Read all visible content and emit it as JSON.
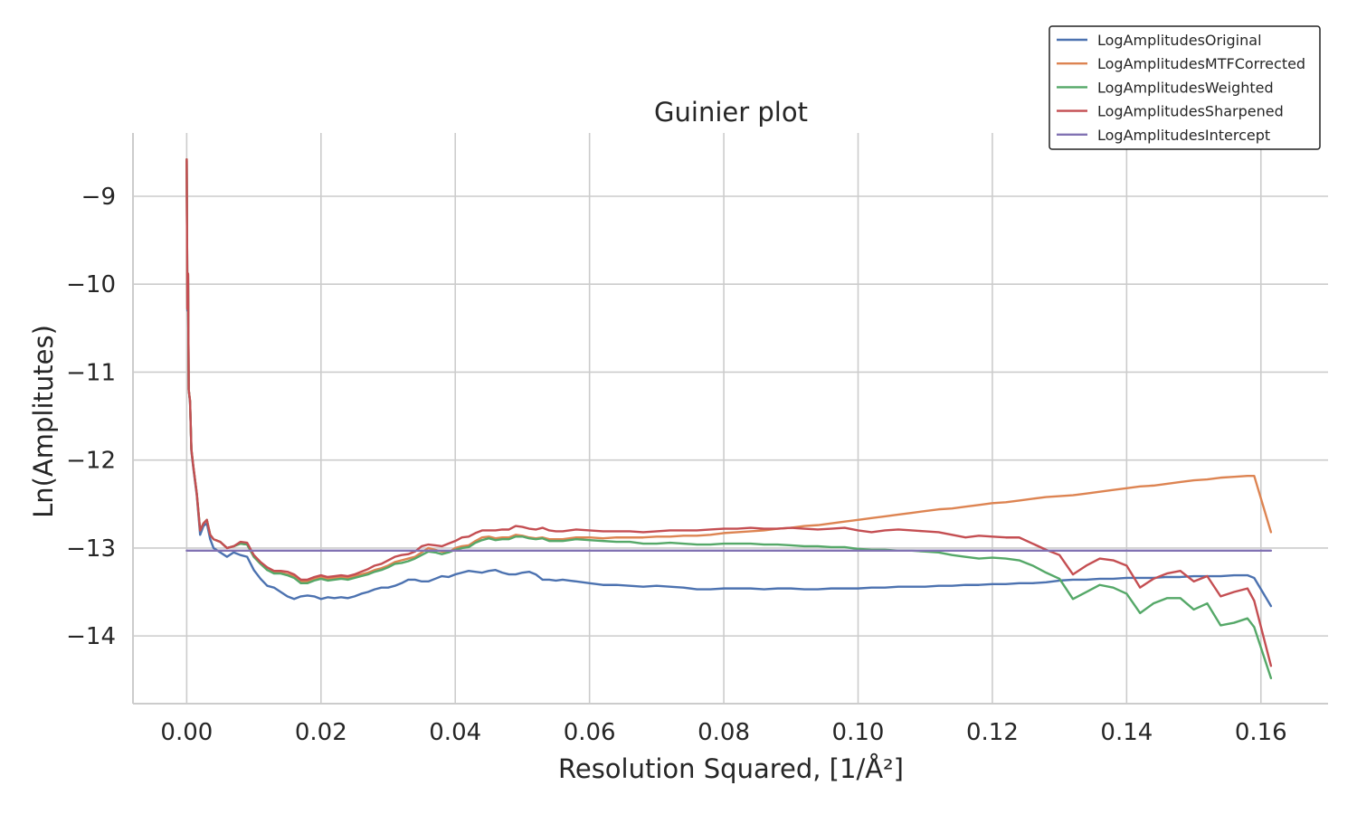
{
  "chart_data": {
    "type": "line",
    "title": "Guinier plot",
    "xlabel": "Resolution Squared, [1/Å²]",
    "ylabel": "Ln(Amplitutes)",
    "xlim": [
      -0.008,
      0.17
    ],
    "ylim": [
      -14.77,
      -8.28
    ],
    "xticks": [
      0.0,
      0.02,
      0.04,
      0.06,
      0.08,
      0.1,
      0.12,
      0.14,
      0.16
    ],
    "xtick_labels": [
      "0.00",
      "0.02",
      "0.04",
      "0.06",
      "0.08",
      "0.10",
      "0.12",
      "0.14",
      "0.16"
    ],
    "yticks": [
      -9,
      -10,
      -11,
      -12,
      -13,
      -14
    ],
    "ytick_labels": [
      "−9",
      "−10",
      "−11",
      "−12",
      "−13",
      "−14"
    ],
    "grid": true,
    "legend_position": "top-right",
    "colors": {
      "LogAmplitudesOriginal": "#4c72b0",
      "LogAmplitudesMTFCorrected": "#dd8452",
      "LogAmplitudesWeighted": "#55a868",
      "LogAmplitudesSharpened": "#c44e52",
      "LogAmplitudesIntercept": "#8172b3"
    },
    "series": [
      {
        "name": "LogAmplitudesOriginal",
        "x": [
          0.0,
          0.0001,
          0.0002,
          0.0003,
          0.0005,
          0.0007,
          0.001,
          0.0015,
          0.002,
          0.0025,
          0.003,
          0.0035,
          0.004,
          0.005,
          0.006,
          0.007,
          0.008,
          0.009,
          0.01,
          0.011,
          0.012,
          0.013,
          0.014,
          0.015,
          0.016,
          0.017,
          0.018,
          0.019,
          0.02,
          0.021,
          0.022,
          0.023,
          0.024,
          0.025,
          0.026,
          0.027,
          0.028,
          0.029,
          0.03,
          0.031,
          0.032,
          0.033,
          0.034,
          0.035,
          0.036,
          0.037,
          0.038,
          0.039,
          0.04,
          0.041,
          0.042,
          0.043,
          0.044,
          0.045,
          0.046,
          0.047,
          0.048,
          0.049,
          0.05,
          0.051,
          0.052,
          0.053,
          0.054,
          0.055,
          0.056,
          0.057,
          0.058,
          0.06,
          0.062,
          0.064,
          0.066,
          0.068,
          0.07,
          0.072,
          0.074,
          0.076,
          0.078,
          0.08,
          0.082,
          0.084,
          0.086,
          0.088,
          0.09,
          0.092,
          0.094,
          0.096,
          0.098,
          0.1,
          0.102,
          0.104,
          0.106,
          0.108,
          0.11,
          0.112,
          0.114,
          0.116,
          0.118,
          0.12,
          0.122,
          0.124,
          0.126,
          0.128,
          0.13,
          0.132,
          0.134,
          0.136,
          0.138,
          0.14,
          0.142,
          0.144,
          0.146,
          0.148,
          0.15,
          0.152,
          0.154,
          0.156,
          0.158,
          0.159,
          0.1615
        ],
        "y": [
          -8.6,
          -10.3,
          -9.9,
          -11.2,
          -11.35,
          -11.9,
          -12.1,
          -12.4,
          -12.85,
          -12.75,
          -12.72,
          -12.9,
          -13.0,
          -13.05,
          -13.1,
          -13.05,
          -13.08,
          -13.1,
          -13.25,
          -13.35,
          -13.43,
          -13.45,
          -13.5,
          -13.55,
          -13.58,
          -13.55,
          -13.54,
          -13.55,
          -13.58,
          -13.56,
          -13.57,
          -13.56,
          -13.57,
          -13.55,
          -13.52,
          -13.5,
          -13.47,
          -13.45,
          -13.45,
          -13.43,
          -13.4,
          -13.36,
          -13.36,
          -13.38,
          -13.38,
          -13.35,
          -13.32,
          -13.33,
          -13.3,
          -13.28,
          -13.26,
          -13.27,
          -13.28,
          -13.26,
          -13.25,
          -13.28,
          -13.3,
          -13.3,
          -13.28,
          -13.27,
          -13.3,
          -13.36,
          -13.36,
          -13.37,
          -13.36,
          -13.37,
          -13.38,
          -13.4,
          -13.42,
          -13.42,
          -13.43,
          -13.44,
          -13.43,
          -13.44,
          -13.45,
          -13.47,
          -13.47,
          -13.46,
          -13.46,
          -13.46,
          -13.47,
          -13.46,
          -13.46,
          -13.47,
          -13.47,
          -13.46,
          -13.46,
          -13.46,
          -13.45,
          -13.45,
          -13.44,
          -13.44,
          -13.44,
          -13.43,
          -13.43,
          -13.42,
          -13.42,
          -13.41,
          -13.41,
          -13.4,
          -13.4,
          -13.39,
          -13.37,
          -13.36,
          -13.36,
          -13.35,
          -13.35,
          -13.34,
          -13.34,
          -13.34,
          -13.33,
          -13.33,
          -13.32,
          -13.32,
          -13.32,
          -13.31,
          -13.31,
          -13.34,
          -13.66
        ]
      },
      {
        "name": "LogAmplitudesMTFCorrected",
        "x": [
          0.0,
          0.0001,
          0.0002,
          0.0003,
          0.0005,
          0.0007,
          0.001,
          0.0015,
          0.002,
          0.0025,
          0.003,
          0.0035,
          0.004,
          0.005,
          0.006,
          0.007,
          0.008,
          0.009,
          0.01,
          0.011,
          0.012,
          0.013,
          0.014,
          0.015,
          0.016,
          0.017,
          0.018,
          0.019,
          0.02,
          0.021,
          0.022,
          0.023,
          0.024,
          0.025,
          0.026,
          0.027,
          0.028,
          0.029,
          0.03,
          0.031,
          0.032,
          0.033,
          0.034,
          0.035,
          0.036,
          0.037,
          0.038,
          0.039,
          0.04,
          0.041,
          0.042,
          0.043,
          0.044,
          0.045,
          0.046,
          0.047,
          0.048,
          0.049,
          0.05,
          0.051,
          0.052,
          0.053,
          0.054,
          0.055,
          0.056,
          0.057,
          0.058,
          0.06,
          0.062,
          0.064,
          0.066,
          0.068,
          0.07,
          0.072,
          0.074,
          0.076,
          0.078,
          0.08,
          0.082,
          0.084,
          0.086,
          0.088,
          0.09,
          0.092,
          0.094,
          0.096,
          0.098,
          0.1,
          0.102,
          0.104,
          0.106,
          0.108,
          0.11,
          0.112,
          0.114,
          0.116,
          0.118,
          0.12,
          0.122,
          0.124,
          0.126,
          0.128,
          0.13,
          0.132,
          0.134,
          0.136,
          0.138,
          0.14,
          0.142,
          0.144,
          0.146,
          0.148,
          0.15,
          0.152,
          0.154,
          0.156,
          0.158,
          0.159,
          0.1615
        ],
        "y": [
          -8.58,
          -10.28,
          -9.88,
          -11.2,
          -11.33,
          -11.88,
          -12.08,
          -12.38,
          -12.8,
          -12.72,
          -12.68,
          -12.85,
          -12.9,
          -12.93,
          -13.0,
          -12.98,
          -12.95,
          -12.96,
          -13.1,
          -13.18,
          -13.25,
          -13.28,
          -13.28,
          -13.3,
          -13.32,
          -13.38,
          -13.38,
          -13.35,
          -13.33,
          -13.35,
          -13.34,
          -13.33,
          -13.34,
          -13.32,
          -13.3,
          -13.28,
          -13.25,
          -13.23,
          -13.2,
          -13.16,
          -13.14,
          -13.12,
          -13.1,
          -13.05,
          -13.0,
          -13.02,
          -13.04,
          -13.05,
          -13.0,
          -12.98,
          -12.97,
          -12.92,
          -12.88,
          -12.87,
          -12.89,
          -12.88,
          -12.88,
          -12.85,
          -12.86,
          -12.88,
          -12.89,
          -12.88,
          -12.9,
          -12.9,
          -12.9,
          -12.89,
          -12.88,
          -12.88,
          -12.89,
          -12.88,
          -12.88,
          -12.88,
          -12.87,
          -12.87,
          -12.86,
          -12.86,
          -12.85,
          -12.83,
          -12.82,
          -12.81,
          -12.8,
          -12.78,
          -12.77,
          -12.75,
          -12.74,
          -12.72,
          -12.7,
          -12.68,
          -12.66,
          -12.64,
          -12.62,
          -12.6,
          -12.58,
          -12.56,
          -12.55,
          -12.53,
          -12.51,
          -12.49,
          -12.48,
          -12.46,
          -12.44,
          -12.42,
          -12.41,
          -12.4,
          -12.38,
          -12.36,
          -12.34,
          -12.32,
          -12.3,
          -12.29,
          -12.27,
          -12.25,
          -12.23,
          -12.22,
          -12.2,
          -12.19,
          -12.18,
          -12.18,
          -12.82
        ]
      },
      {
        "name": "LogAmplitudesWeighted",
        "x": [
          0.0,
          0.0001,
          0.0002,
          0.0003,
          0.0005,
          0.0007,
          0.001,
          0.0015,
          0.002,
          0.0025,
          0.003,
          0.0035,
          0.004,
          0.005,
          0.006,
          0.007,
          0.008,
          0.009,
          0.01,
          0.011,
          0.012,
          0.013,
          0.014,
          0.015,
          0.016,
          0.017,
          0.018,
          0.019,
          0.02,
          0.021,
          0.022,
          0.023,
          0.024,
          0.025,
          0.026,
          0.027,
          0.028,
          0.029,
          0.03,
          0.031,
          0.032,
          0.033,
          0.034,
          0.035,
          0.036,
          0.037,
          0.038,
          0.039,
          0.04,
          0.041,
          0.042,
          0.043,
          0.044,
          0.045,
          0.046,
          0.047,
          0.048,
          0.049,
          0.05,
          0.051,
          0.052,
          0.053,
          0.054,
          0.055,
          0.056,
          0.057,
          0.058,
          0.06,
          0.062,
          0.064,
          0.066,
          0.068,
          0.07,
          0.072,
          0.074,
          0.076,
          0.078,
          0.08,
          0.082,
          0.084,
          0.086,
          0.088,
          0.09,
          0.092,
          0.094,
          0.096,
          0.098,
          0.1,
          0.102,
          0.104,
          0.106,
          0.108,
          0.11,
          0.112,
          0.114,
          0.116,
          0.118,
          0.12,
          0.122,
          0.124,
          0.126,
          0.128,
          0.13,
          0.132,
          0.134,
          0.136,
          0.138,
          0.14,
          0.142,
          0.144,
          0.146,
          0.148,
          0.15,
          0.152,
          0.154,
          0.156,
          0.158,
          0.159,
          0.1615
        ],
        "y": [
          -8.58,
          -10.28,
          -9.88,
          -11.2,
          -11.33,
          -11.88,
          -12.08,
          -12.38,
          -12.8,
          -12.72,
          -12.68,
          -12.85,
          -12.9,
          -12.93,
          -13.0,
          -12.98,
          -12.95,
          -12.96,
          -13.1,
          -13.18,
          -13.25,
          -13.29,
          -13.29,
          -13.31,
          -13.34,
          -13.4,
          -13.4,
          -13.37,
          -13.35,
          -13.37,
          -13.36,
          -13.35,
          -13.36,
          -13.34,
          -13.32,
          -13.3,
          -13.27,
          -13.25,
          -13.22,
          -13.18,
          -13.17,
          -13.15,
          -13.12,
          -13.08,
          -13.04,
          -13.05,
          -13.07,
          -13.05,
          -13.02,
          -13.0,
          -12.99,
          -12.94,
          -12.91,
          -12.89,
          -12.91,
          -12.9,
          -12.9,
          -12.87,
          -12.87,
          -12.89,
          -12.9,
          -12.89,
          -12.92,
          -12.92,
          -12.92,
          -12.91,
          -12.9,
          -12.91,
          -12.92,
          -12.93,
          -12.93,
          -12.95,
          -12.95,
          -12.94,
          -12.95,
          -12.96,
          -12.96,
          -12.95,
          -12.95,
          -12.95,
          -12.96,
          -12.96,
          -12.97,
          -12.98,
          -12.98,
          -12.99,
          -12.99,
          -13.01,
          -13.02,
          -13.02,
          -13.03,
          -13.03,
          -13.04,
          -13.05,
          -13.08,
          -13.1,
          -13.12,
          -13.11,
          -13.12,
          -13.14,
          -13.2,
          -13.28,
          -13.35,
          -13.58,
          -13.5,
          -13.42,
          -13.45,
          -13.52,
          -13.74,
          -13.63,
          -13.57,
          -13.57,
          -13.7,
          -13.63,
          -13.88,
          -13.85,
          -13.8,
          -13.9,
          -14.48
        ]
      },
      {
        "name": "LogAmplitudesSharpened",
        "x": [
          0.0,
          0.0001,
          0.0002,
          0.0003,
          0.0005,
          0.0007,
          0.001,
          0.0015,
          0.002,
          0.0025,
          0.003,
          0.0035,
          0.004,
          0.005,
          0.006,
          0.007,
          0.008,
          0.009,
          0.01,
          0.011,
          0.012,
          0.013,
          0.014,
          0.015,
          0.016,
          0.017,
          0.018,
          0.019,
          0.02,
          0.021,
          0.022,
          0.023,
          0.024,
          0.025,
          0.026,
          0.027,
          0.028,
          0.029,
          0.03,
          0.031,
          0.032,
          0.033,
          0.034,
          0.035,
          0.036,
          0.037,
          0.038,
          0.039,
          0.04,
          0.041,
          0.042,
          0.043,
          0.044,
          0.045,
          0.046,
          0.047,
          0.048,
          0.049,
          0.05,
          0.051,
          0.052,
          0.053,
          0.054,
          0.055,
          0.056,
          0.057,
          0.058,
          0.06,
          0.062,
          0.064,
          0.066,
          0.068,
          0.07,
          0.072,
          0.074,
          0.076,
          0.078,
          0.08,
          0.082,
          0.084,
          0.086,
          0.088,
          0.09,
          0.092,
          0.094,
          0.096,
          0.098,
          0.1,
          0.102,
          0.104,
          0.106,
          0.108,
          0.11,
          0.112,
          0.114,
          0.116,
          0.118,
          0.12,
          0.122,
          0.124,
          0.126,
          0.128,
          0.13,
          0.132,
          0.134,
          0.136,
          0.138,
          0.14,
          0.142,
          0.144,
          0.146,
          0.148,
          0.15,
          0.152,
          0.154,
          0.156,
          0.158,
          0.159,
          0.1615
        ],
        "y": [
          -8.58,
          -10.28,
          -9.88,
          -11.2,
          -11.33,
          -11.88,
          -12.08,
          -12.38,
          -12.8,
          -12.72,
          -12.68,
          -12.85,
          -12.9,
          -12.93,
          -13.0,
          -12.98,
          -12.93,
          -12.94,
          -13.08,
          -13.16,
          -13.22,
          -13.26,
          -13.26,
          -13.27,
          -13.3,
          -13.36,
          -13.36,
          -13.33,
          -13.31,
          -13.33,
          -13.32,
          -13.31,
          -13.32,
          -13.3,
          -13.27,
          -13.24,
          -13.2,
          -13.18,
          -13.14,
          -13.1,
          -13.08,
          -13.07,
          -13.04,
          -12.98,
          -12.96,
          -12.97,
          -12.98,
          -12.95,
          -12.92,
          -12.88,
          -12.87,
          -12.83,
          -12.8,
          -12.8,
          -12.8,
          -12.79,
          -12.79,
          -12.75,
          -12.76,
          -12.78,
          -12.79,
          -12.77,
          -12.8,
          -12.81,
          -12.81,
          -12.8,
          -12.79,
          -12.8,
          -12.81,
          -12.81,
          -12.81,
          -12.82,
          -12.81,
          -12.8,
          -12.8,
          -12.8,
          -12.79,
          -12.78,
          -12.78,
          -12.77,
          -12.78,
          -12.78,
          -12.77,
          -12.78,
          -12.79,
          -12.78,
          -12.77,
          -12.8,
          -12.82,
          -12.8,
          -12.79,
          -12.8,
          -12.81,
          -12.82,
          -12.85,
          -12.88,
          -12.86,
          -12.87,
          -12.88,
          -12.88,
          -12.95,
          -13.02,
          -13.08,
          -13.3,
          -13.2,
          -13.12,
          -13.14,
          -13.2,
          -13.45,
          -13.35,
          -13.29,
          -13.26,
          -13.38,
          -13.32,
          -13.55,
          -13.5,
          -13.46,
          -13.6,
          -14.34
        ]
      },
      {
        "name": "LogAmplitudesIntercept",
        "x": [
          0.0,
          0.1615
        ],
        "y": [
          -13.03,
          -13.03
        ]
      }
    ]
  }
}
